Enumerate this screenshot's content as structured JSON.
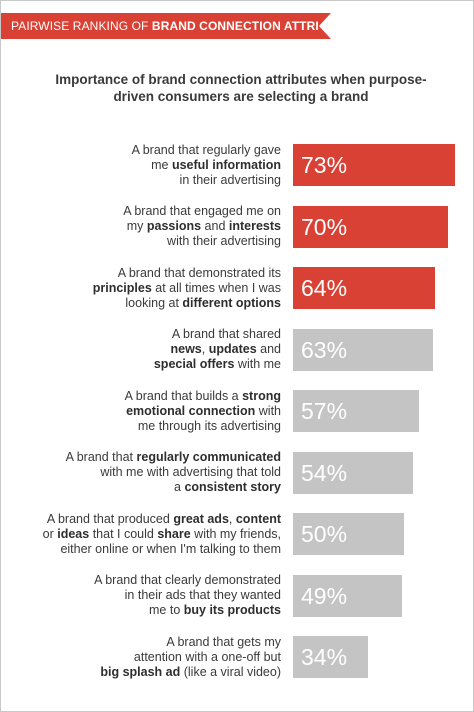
{
  "header": {
    "prefix": "PAIRWISE RANKING OF ",
    "emphasis": "BRAND CONNECTION ATTRIBUTES"
  },
  "colors": {
    "accent": "#d94135",
    "highlight_bar": "#d94135",
    "other_bar": "#c4c4c4",
    "text": "#3a3a3a"
  },
  "chart_data": {
    "type": "bar",
    "orientation": "horizontal",
    "title": "Importance of brand connection attributes when purpose-driven consumers are selecting a brand",
    "xlim": [
      0,
      73
    ],
    "grid": false,
    "legend": "none",
    "categories": [
      [
        {
          "t": "A brand that regularly gave",
          "b": false
        },
        {
          "t": "me ",
          "b": false
        },
        {
          "t": "useful information",
          "b": true
        },
        {
          "t": "in their advertising",
          "b": false
        }
      ],
      [
        {
          "t": "A brand that engaged me on",
          "b": false
        },
        {
          "t": "my ",
          "b": false
        },
        {
          "t": "passions",
          "b": true
        },
        {
          "t": " and ",
          "b": false
        },
        {
          "t": "interests",
          "b": true
        },
        {
          "t": "with their advertising",
          "b": false
        }
      ],
      [
        {
          "t": "A brand that demonstrated its",
          "b": false
        },
        {
          "t": "principles",
          "b": true
        },
        {
          "t": " at all times when I was",
          "b": false
        },
        {
          "t": "looking at ",
          "b": false
        },
        {
          "t": "different options",
          "b": true
        }
      ],
      [
        {
          "t": "A brand that shared",
          "b": false
        },
        {
          "t": "news",
          "b": true
        },
        {
          "t": ", ",
          "b": false
        },
        {
          "t": "updates",
          "b": true
        },
        {
          "t": " and",
          "b": false
        },
        {
          "t": "special offers",
          "b": true
        },
        {
          "t": " with me",
          "b": false
        }
      ],
      [
        {
          "t": "A brand that builds a ",
          "b": false
        },
        {
          "t": "strong",
          "b": true
        },
        {
          "t": "emotional connection",
          "b": true
        },
        {
          "t": " with",
          "b": false
        },
        {
          "t": "me through its advertising",
          "b": false
        }
      ],
      [
        {
          "t": "A brand that ",
          "b": false
        },
        {
          "t": "regularly communicated",
          "b": true
        },
        {
          "t": "with me with advertising that told",
          "b": false
        },
        {
          "t": "a ",
          "b": false
        },
        {
          "t": "consistent story",
          "b": true
        }
      ],
      [
        {
          "t": "A brand that produced ",
          "b": false
        },
        {
          "t": "great ads",
          "b": true
        },
        {
          "t": ", ",
          "b": false
        },
        {
          "t": "content",
          "b": true
        },
        {
          "t": "or ",
          "b": false
        },
        {
          "t": "ideas",
          "b": true
        },
        {
          "t": " that I could ",
          "b": false
        },
        {
          "t": "share",
          "b": true
        },
        {
          "t": " with my friends,",
          "b": false
        },
        {
          "t": "either online or when I'm talking to them",
          "b": false
        }
      ],
      [
        {
          "t": "A brand that clearly demonstrated",
          "b": false
        },
        {
          "t": "in their ads that they wanted",
          "b": false
        },
        {
          "t": "me to ",
          "b": false
        },
        {
          "t": "buy its products",
          "b": true
        }
      ],
      [
        {
          "t": "A brand that gets my",
          "b": false
        },
        {
          "t": "attention with a one-off but",
          "b": false
        },
        {
          "t": "big splash ad",
          "b": true
        },
        {
          "t": " (like a viral video)",
          "b": false
        }
      ]
    ],
    "line_breaks": [
      [
        1,
        3
      ],
      [
        1,
        5
      ],
      [
        1,
        3
      ],
      [
        1,
        5
      ],
      [
        2,
        4
      ],
      [
        2,
        3
      ],
      [
        4,
        9
      ],
      [
        1,
        2
      ],
      [
        1,
        2
      ]
    ],
    "values": [
      73,
      70,
      64,
      63,
      57,
      54,
      50,
      49,
      34
    ],
    "value_labels": [
      "73%",
      "70%",
      "64%",
      "63%",
      "57%",
      "54%",
      "50%",
      "49%",
      "34%"
    ],
    "highlighted": [
      true,
      true,
      true,
      false,
      false,
      false,
      false,
      false,
      false
    ]
  }
}
